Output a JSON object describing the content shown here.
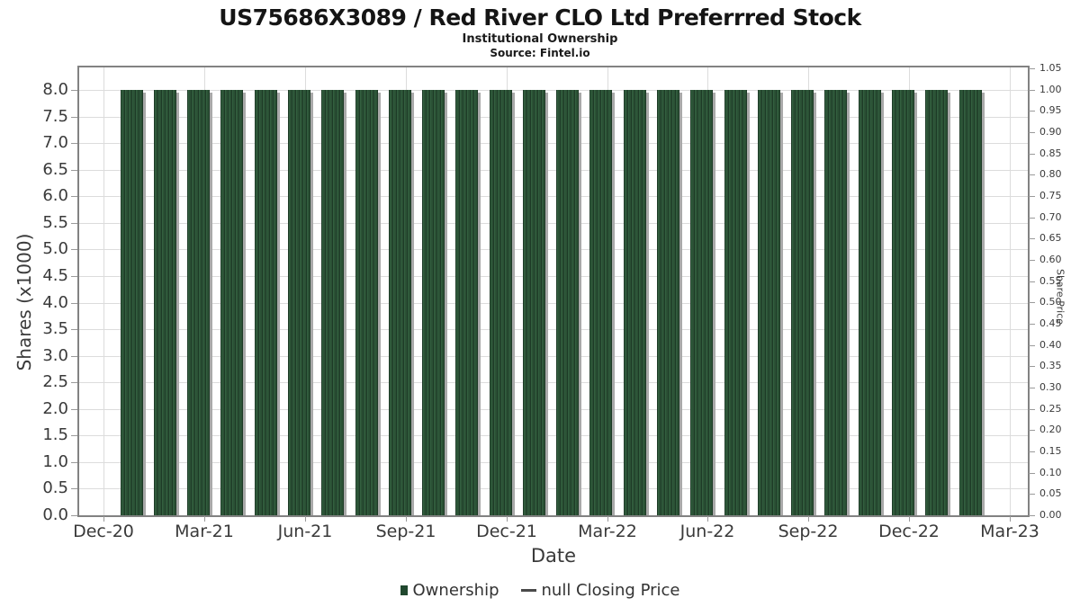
{
  "header": {
    "title": "US75686X3089 / Red River CLO Ltd Preferrred Stock",
    "subtitle": "Institutional Ownership",
    "source": "Source: Fintel.io"
  },
  "chart_data": {
    "type": "bar",
    "title": "US75686X3089 / Red River CLO Ltd Preferrred Stock",
    "subtitle": "Institutional Ownership",
    "source": "Source: Fintel.io",
    "xlabel": "Date",
    "ylabel_left": "Shares (x1000)",
    "ylabel_right": "Share Price",
    "categories": [
      "Jan-21",
      "Feb-21",
      "Mar-21",
      "Apr-21",
      "May-21",
      "Jun-21",
      "Jul-21",
      "Aug-21",
      "Sep-21",
      "Oct-21",
      "Nov-21",
      "Dec-21",
      "Jan-22",
      "Feb-22",
      "Mar-22",
      "Apr-22",
      "May-22",
      "Jun-22",
      "Jul-22",
      "Aug-22",
      "Sep-22",
      "Oct-22",
      "Nov-22",
      "Dec-22",
      "Jan-23",
      "Feb-23"
    ],
    "series": [
      {
        "name": "Ownership",
        "type": "bar",
        "color": "#2b5135",
        "values": [
          8.0,
          8.0,
          8.0,
          8.0,
          8.0,
          8.0,
          8.0,
          8.0,
          8.0,
          8.0,
          8.0,
          8.0,
          8.0,
          8.0,
          8.0,
          8.0,
          8.0,
          8.0,
          8.0,
          8.0,
          8.0,
          8.0,
          8.0,
          8.0,
          8.0,
          8.0
        ]
      },
      {
        "name": "null Closing Price",
        "type": "line",
        "color": "#4a4a4a",
        "values": []
      }
    ],
    "x_tick_labels": [
      "Dec-20",
      "Mar-21",
      "Jun-21",
      "Sep-21",
      "Dec-21",
      "Mar-22",
      "Jun-22",
      "Sep-22",
      "Dec-22",
      "Mar-23"
    ],
    "y_left_ticks": [
      "0.0",
      "0.5",
      "1.0",
      "1.5",
      "2.0",
      "2.5",
      "3.0",
      "3.5",
      "4.0",
      "4.5",
      "5.0",
      "5.5",
      "6.0",
      "6.5",
      "7.0",
      "7.5",
      "8.0"
    ],
    "y_right_ticks": [
      "0.00",
      "0.05",
      "0.10",
      "0.15",
      "0.20",
      "0.25",
      "0.30",
      "0.35",
      "0.40",
      "0.45",
      "0.50",
      "0.55",
      "0.60",
      "0.65",
      "0.70",
      "0.75",
      "0.80",
      "0.85",
      "0.90",
      "0.95",
      "1.00",
      "1.05"
    ],
    "ylim_left": [
      0,
      8.42
    ],
    "ylim_right": [
      0,
      1.05
    ],
    "grid": true,
    "legend_position": "bottom",
    "colors": {
      "bar_fill": "#2b5135",
      "bar_stripe_dark": "#1d3a26",
      "bar_stripe_light": "#336040",
      "bar_shadow": "#a9a9a9",
      "grid_line": "#dcdcdc",
      "plot_border": "#828282",
      "tick_text": "#3a3a3a"
    }
  }
}
